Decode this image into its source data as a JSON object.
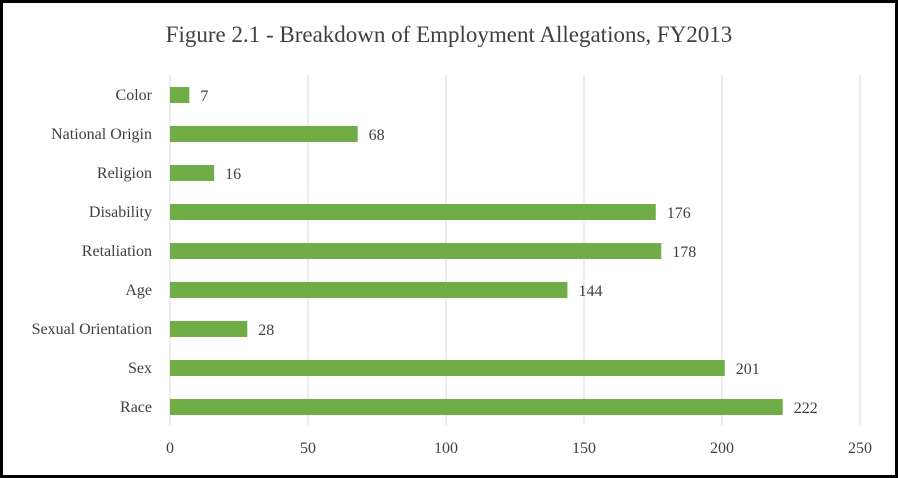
{
  "chart_data": {
    "type": "bar",
    "orientation": "horizontal",
    "title": "Figure 2.1 - Breakdown of Employment Allegations, FY2013",
    "categories": [
      "Color",
      "National Origin",
      "Religion",
      "Disability",
      "Retaliation",
      "Age",
      "Sexual Orientation",
      "Sex",
      "Race"
    ],
    "values": [
      7,
      68,
      16,
      176,
      178,
      144,
      28,
      201,
      222
    ],
    "xlim": [
      0,
      250
    ],
    "xticks": [
      0,
      50,
      100,
      150,
      200,
      250
    ],
    "grid": "vertical",
    "data_labels": true,
    "bar_color": "#70ad47",
    "grid_color": "#d9d9d9",
    "text_color": "#404040"
  }
}
